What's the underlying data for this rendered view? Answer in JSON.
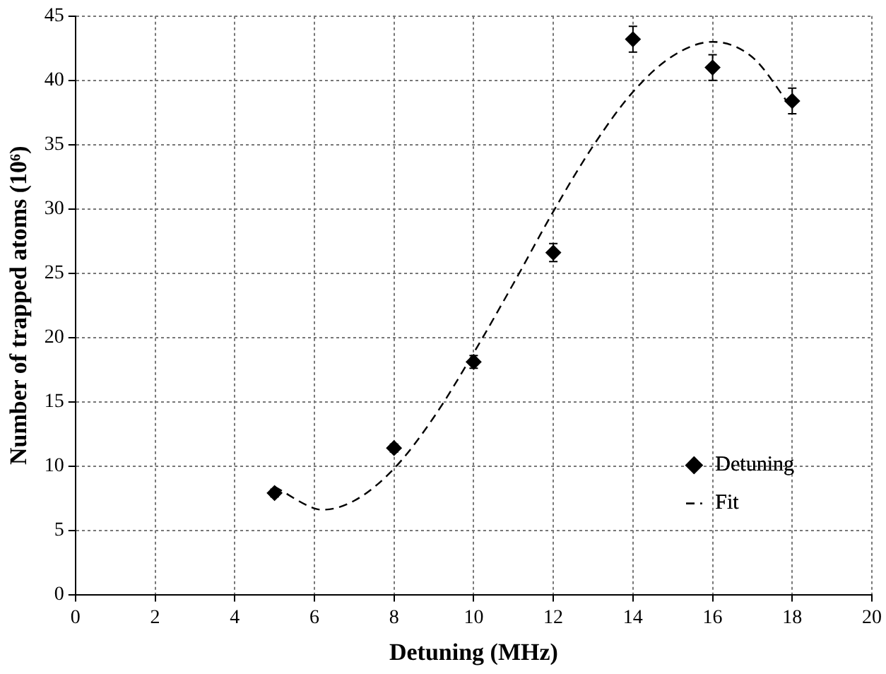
{
  "chart_data": {
    "type": "scatter",
    "xlabel": "Detuning (MHz)",
    "ylabel": "Number of trapped atoms (10⁶)",
    "xlim": [
      0,
      20
    ],
    "xticks": [
      0,
      2,
      4,
      6,
      8,
      10,
      12,
      14,
      16,
      18,
      20
    ],
    "ylim": [
      0,
      45
    ],
    "yticks": [
      0,
      5,
      10,
      15,
      20,
      25,
      30,
      35,
      40,
      45
    ],
    "grid": true,
    "legend": "bottom right",
    "series": [
      {
        "name": "Detuning",
        "type": "scatter",
        "color": "#000000",
        "marker": "diamond",
        "x": [
          5,
          8,
          10,
          12,
          14,
          16,
          18
        ],
        "values": [
          7.9,
          11.4,
          18.1,
          26.6,
          43.2,
          41.0,
          38.4
        ],
        "errors": [
          0.3,
          0.3,
          0.5,
          0.7,
          1.0,
          1.0,
          1.0
        ]
      },
      {
        "name": "Fit",
        "type": "line",
        "color": "#000000",
        "marker": "none",
        "line_style": "dashed",
        "x": [
          5,
          6,
          6.2,
          7,
          8,
          9,
          10,
          11,
          12,
          13,
          14,
          15,
          16,
          17,
          18
        ],
        "values": [
          8.4,
          6.7,
          6.6,
          7.3,
          9.8,
          13.8,
          18.8,
          24.2,
          29.8,
          34.9,
          39.1,
          41.9,
          43.0,
          41.8,
          37.8
        ]
      }
    ]
  }
}
